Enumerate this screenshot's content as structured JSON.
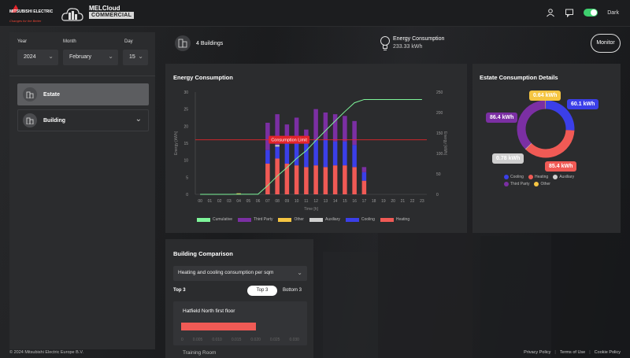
{
  "header": {
    "brand_text": "MITSUBISHI ELECTRIC",
    "brand_tagline": "Changes for the Better",
    "product_title": "MELCloud",
    "product_subtitle": "COMMERCIAL",
    "theme_toggle_label": "Dark",
    "theme_dark_on": true,
    "icons": [
      "user-icon",
      "chat-icon"
    ]
  },
  "filters": {
    "year_label": "Year",
    "year_value": "2024",
    "month_label": "Month",
    "month_value": "February",
    "day_label": "Day",
    "day_value": "15"
  },
  "nav": {
    "items": [
      {
        "label": "Estate",
        "active": true,
        "icon": "building-icon"
      },
      {
        "label": "Building",
        "active": false,
        "icon": "building-icon"
      }
    ]
  },
  "summary": {
    "buildings_label": "4 Buildings",
    "energy_title": "Energy Consumption",
    "energy_value": "233.33 kWh",
    "monitor_label": "Monitor"
  },
  "energy_card": {
    "title": "Energy Consumption",
    "limit_label": "Consumption Limit",
    "legend": [
      {
        "name": "Cumulative",
        "color": "#7ef59a"
      },
      {
        "name": "Third Party",
        "color": "#7b2fa3"
      },
      {
        "name": "Other",
        "color": "#f5c542"
      },
      {
        "name": "Auxiliary",
        "color": "#cfcfcf"
      },
      {
        "name": "Cooling",
        "color": "#3b3fe8"
      },
      {
        "name": "Heating",
        "color": "#f05a55"
      }
    ]
  },
  "estate_card": {
    "title": "Estate Consumption Details",
    "labels": {
      "other": "0.64 kWh",
      "cooling": "60.1 kWh",
      "third_party": "86.4 kWh",
      "auxiliary": "0.78 kWh",
      "heating": "85.4 kWh"
    },
    "legend": [
      "Cooling",
      "Heating",
      "Auxiliary",
      "Third Party",
      "Other"
    ]
  },
  "comparison_card": {
    "title": "Building Comparison",
    "select_value": "Heating and cooling consumption per sqm",
    "section_label": "Top 3",
    "toggle_top": "Top 3",
    "toggle_bottom": "Bottom 3",
    "rows": [
      {
        "name": "Hatfield North first floor",
        "value": 0.019
      }
    ],
    "axis_ticks": [
      "0",
      "0.005",
      "0.010",
      "0.015",
      "0.020",
      "0.025",
      "0.030"
    ],
    "next_row_name": "Training Room"
  },
  "footer": {
    "copyright": "© 2024 Mitsubishi Electric Europe B.V.",
    "links": [
      "Privacy Policy",
      "Terms of Use",
      "Cookie Policy"
    ]
  },
  "chart_data": [
    {
      "type": "bar",
      "title": "Energy Consumption",
      "xlabel": "Time [h]",
      "ylabel": "Energy [kWh]",
      "y2label": "Energy [kWh]",
      "categories": [
        "00",
        "01",
        "02",
        "03",
        "04",
        "05",
        "06",
        "07",
        "08",
        "09",
        "10",
        "11",
        "12",
        "13",
        "14",
        "15",
        "16",
        "17",
        "18",
        "19",
        "20",
        "21",
        "22",
        "23"
      ],
      "ylim": [
        0,
        30
      ],
      "y2lim": [
        0,
        250
      ],
      "yticks": [
        0,
        5,
        10,
        15,
        20,
        25,
        30
      ],
      "y2ticks": [
        0,
        50,
        100,
        150,
        200,
        250
      ],
      "stacked": true,
      "limit": 16,
      "series": [
        {
          "name": "Heating",
          "color": "#f05a55",
          "values": [
            0,
            0,
            0,
            0,
            0,
            0,
            0,
            9,
            10.5,
            9,
            8.5,
            8,
            8.5,
            8,
            8.5,
            8.5,
            8,
            4,
            0,
            0,
            0,
            0,
            0,
            0
          ]
        },
        {
          "name": "Cooling",
          "color": "#3b3fe8",
          "values": [
            0,
            0,
            0,
            0,
            0,
            0,
            0,
            4,
            3.5,
            6,
            7,
            7,
            7.5,
            8,
            7,
            7,
            6.5,
            2.5,
            0,
            0,
            0,
            0,
            0,
            0
          ]
        },
        {
          "name": "Auxiliary",
          "color": "#cfcfcf",
          "values": [
            0,
            0,
            0,
            0,
            0,
            0,
            0,
            0,
            0.5,
            0,
            0,
            0,
            0,
            0,
            0,
            0,
            0,
            0,
            0,
            0,
            0,
            0,
            0,
            0
          ]
        },
        {
          "name": "Other",
          "color": "#f5c542",
          "values": [
            0,
            0,
            0,
            0,
            0.3,
            0,
            0,
            0,
            0,
            0,
            0,
            0,
            0,
            0,
            0,
            0,
            0,
            0,
            0,
            0,
            0,
            0,
            0,
            0
          ]
        },
        {
          "name": "Third Party",
          "color": "#7b2fa3",
          "values": [
            0,
            0,
            0,
            0,
            0,
            0,
            0,
            8,
            9,
            5.5,
            7,
            4,
            9,
            8,
            8,
            7.5,
            7,
            1.5,
            0,
            0,
            0,
            0,
            0,
            0
          ]
        }
      ],
      "cumulative": {
        "name": "Cumulative",
        "color": "#7ef59a",
        "values": [
          0,
          0,
          0,
          0,
          0.3,
          0.3,
          0.3,
          21.3,
          44.8,
          65.3,
          87.8,
          106.8,
          131.8,
          155.8,
          179.3,
          202.3,
          223.8,
          231.8,
          231.8,
          231.8,
          231.8,
          231.8,
          231.8,
          231.8
        ]
      }
    },
    {
      "type": "pie",
      "title": "Estate Consumption Details",
      "categories": [
        "Cooling",
        "Heating",
        "Auxiliary",
        "Third Party",
        "Other"
      ],
      "values": [
        60.1,
        85.4,
        0.78,
        86.4,
        0.64
      ],
      "colors": [
        "#3b3fe8",
        "#f05a55",
        "#cfcfcf",
        "#7b2fa3",
        "#f5c542"
      ]
    }
  ]
}
